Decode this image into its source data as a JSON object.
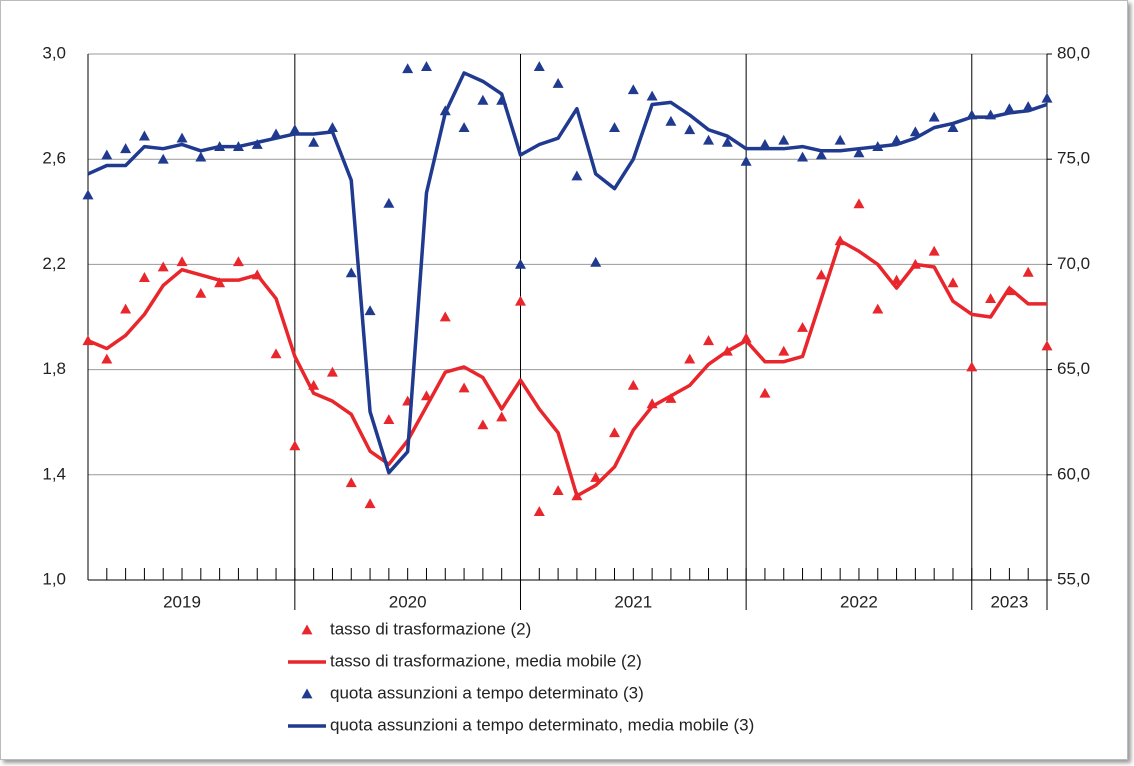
{
  "chart_data": {
    "type": "line",
    "categories": [
      null,
      null,
      null,
      null,
      null,
      "2019",
      null,
      null,
      null,
      null,
      null,
      null,
      null,
      null,
      null,
      null,
      null,
      "2020",
      null,
      null,
      null,
      null,
      null,
      null,
      null,
      null,
      null,
      null,
      null,
      "2021",
      null,
      null,
      null,
      null,
      null,
      null,
      null,
      null,
      null,
      null,
      null,
      "2022",
      null,
      null,
      null,
      null,
      null,
      null,
      null,
      "2023",
      null,
      null
    ],
    "ylim": [
      1.0,
      3.0
    ],
    "yticks": [
      {
        "value": 1.0,
        "label": "1,0"
      },
      {
        "value": 1.4,
        "label": "1,4"
      },
      {
        "value": 1.8,
        "label": "1,8"
      },
      {
        "value": 2.2,
        "label": "2,2"
      },
      {
        "value": 2.6,
        "label": "2,6"
      },
      {
        "value": 3.0,
        "label": "3,0"
      }
    ],
    "y2lim": [
      55,
      80
    ],
    "y2ticks": [
      {
        "value": 55,
        "label": "55,0"
      },
      {
        "value": 60,
        "label": "60,0"
      },
      {
        "value": 65,
        "label": "65,0"
      },
      {
        "value": 70,
        "label": "70,0"
      },
      {
        "value": 75,
        "label": "75,0"
      },
      {
        "value": 80,
        "label": "80,0"
      }
    ],
    "grid": true,
    "series": [
      {
        "name": "tasso di trasformazione (2)",
        "color": "#e8262c",
        "style": "markers",
        "values": [
          1.91,
          1.84,
          2.03,
          2.15,
          2.19,
          2.21,
          2.09,
          2.13,
          2.21,
          2.16,
          1.86,
          1.51,
          1.74,
          1.79,
          1.37,
          1.29,
          1.61,
          1.68,
          1.7,
          2.0,
          1.73,
          1.59,
          1.62,
          2.06,
          1.26,
          1.34,
          1.32,
          1.39,
          1.56,
          1.74,
          1.67,
          1.69,
          1.84,
          1.91,
          1.87,
          1.92,
          1.71,
          1.87,
          1.96,
          2.16,
          2.29,
          2.43,
          2.03,
          2.14,
          2.2,
          2.25,
          2.13,
          1.81,
          2.07,
          2.1,
          2.17,
          1.89
        ]
      },
      {
        "name": "tasso di trasformazione, media mobile (2)",
        "color": "#e8262c",
        "style": "line",
        "values": [
          1.91,
          1.88,
          1.93,
          2.01,
          2.12,
          2.18,
          2.16,
          2.14,
          2.14,
          2.16,
          2.07,
          1.85,
          1.71,
          1.68,
          1.63,
          1.49,
          1.44,
          1.53,
          1.66,
          1.79,
          1.81,
          1.77,
          1.65,
          1.76,
          1.65,
          1.56,
          1.32,
          1.36,
          1.43,
          1.57,
          1.66,
          1.7,
          1.74,
          1.82,
          1.87,
          1.91,
          1.83,
          1.83,
          1.85,
          2.07,
          2.29,
          2.25,
          2.2,
          2.11,
          2.2,
          2.19,
          2.06,
          2.01,
          2.0,
          2.11,
          2.05,
          2.05
        ]
      },
      {
        "name": "quota assunzioni a tempo determinato (3)",
        "color": "#1f3a8f",
        "style": "markers",
        "axis": "y2",
        "values": [
          73.3,
          75.2,
          75.5,
          76.1,
          75.0,
          76.0,
          75.1,
          75.6,
          75.6,
          75.7,
          76.2,
          76.4,
          75.8,
          76.5,
          69.6,
          67.8,
          72.9,
          79.3,
          79.4,
          77.3,
          76.5,
          77.8,
          77.8,
          70.0,
          79.4,
          78.6,
          74.2,
          70.1,
          76.5,
          78.3,
          78.0,
          76.8,
          76.4,
          75.9,
          75.8,
          74.9,
          75.7,
          75.9,
          75.1,
          75.2,
          75.9,
          75.3,
          75.6,
          75.9,
          76.3,
          77.0,
          76.5,
          77.1,
          77.1,
          77.4,
          77.5,
          77.9
        ]
      },
      {
        "name": "quota assunzioni a tempo determinato, media mobile (3)",
        "color": "#1f3a8f",
        "style": "line",
        "axis": "y2",
        "values": [
          74.3,
          74.7,
          74.7,
          75.6,
          75.5,
          75.7,
          75.4,
          75.6,
          75.6,
          75.8,
          76.0,
          76.2,
          76.2,
          76.3,
          74.0,
          63.0,
          60.1,
          61.1,
          73.4,
          77.2,
          79.1,
          78.7,
          78.1,
          75.2,
          75.7,
          76.0,
          77.4,
          74.3,
          73.6,
          75.0,
          77.6,
          77.7,
          77.1,
          76.4,
          76.1,
          75.5,
          75.5,
          75.5,
          75.6,
          75.4,
          75.4,
          75.5,
          75.6,
          75.7,
          76.0,
          76.5,
          76.7,
          77.0,
          77.0,
          77.2,
          77.3,
          77.6
        ]
      }
    ]
  }
}
